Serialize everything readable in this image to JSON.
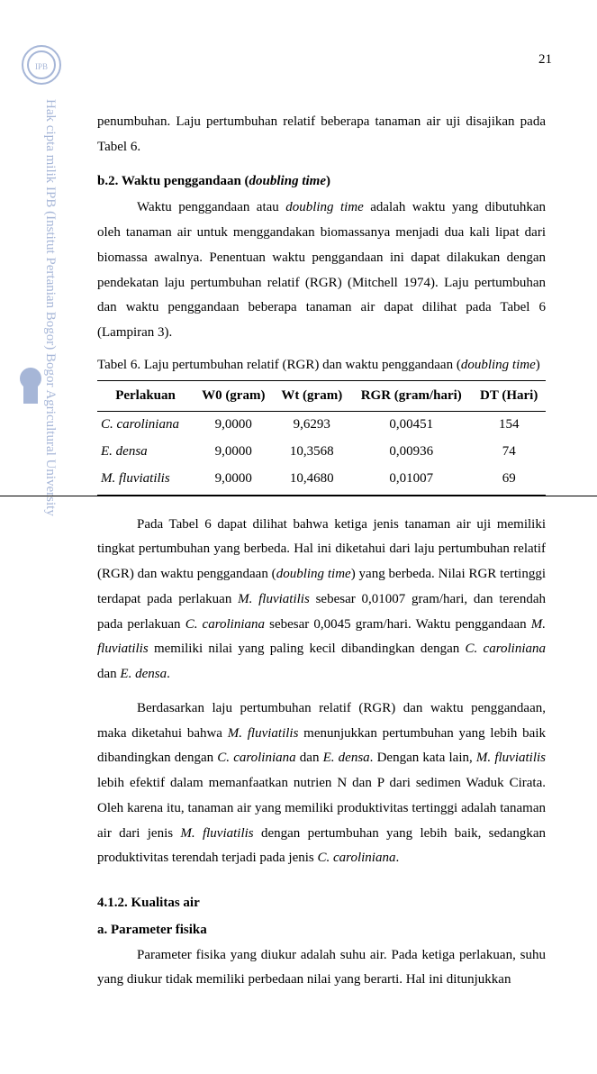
{
  "page_number": "21",
  "paragraphs": {
    "intro_cont": "penumbuhan.   Laju  pertumbuhan  relatif  beberapa  tanaman  air  uji  disajikan  pada Tabel 6.",
    "b2_heading_prefix": "b.2.   Waktu penggandaan (",
    "b2_heading_italic": "doubling time",
    "b2_heading_suffix": ")",
    "b2_body": "Waktu penggandaan atau doubling time adalah waktu yang dibutuhkan oleh tanaman air untuk menggandakan biomassanya menjadi dua kali lipat dari biomassa awalnya.  Penentuan waktu penggandaan ini dapat dilakukan dengan pendekatan laju pertumbuhan relatif (RGR) (Mitchell 1974).  Laju pertumbuhan dan waktu penggandaan beberapa tanaman air dapat dilihat pada Tabel 6 (Lampiran 3).",
    "table_caption_prefix": "Tabel  6.  Laju pertumbuhan relatif (RGR) dan waktu penggandaan (",
    "table_caption_italic": "doubling time",
    "table_caption_suffix": ")",
    "after_table_p1": "Pada Tabel 6 dapat dilihat bahwa ketiga jenis tanaman air uji memiliki tingkat pertumbuhan yang berbeda.  Hal ini diketahui dari laju pertumbuhan relatif (RGR) dan waktu penggandaan (doubling time) yang berbeda.  Nilai RGR tertinggi terdapat pada perlakuan M. fluviatilis sebesar 0,01007 gram/hari, dan terendah pada perlakuan C. caroliniana sebesar 0,0045 gram/hari.  Waktu penggandaan M. fluviatilis memiliki nilai yang paling kecil dibandingkan dengan C. caroliniana dan E. densa.",
    "after_table_p2": "Berdasarkan laju pertumbuhan relatif (RGR) dan waktu penggandaan, maka diketahui bahwa M. fluviatilis menunjukkan pertumbuhan yang lebih baik dibandingkan dengan C. caroliniana dan E. densa.  Dengan kata lain, M. fluviatilis lebih efektif dalam memanfaatkan nutrien N dan P dari sedimen Waduk Cirata. Oleh karena itu, tanaman air yang memiliki produktivitas tertinggi adalah tanaman air dari jenis M. fluviatilis dengan pertumbuhan yang lebih baik, sedangkan produktivitas terendah terjadi pada jenis C. caroliniana.",
    "section_412": "4.1.2.  Kualitas air",
    "section_a": "a.      Parameter fisika",
    "fisika_body": "Parameter fisika yang diukur adalah suhu air. Pada ketiga perlakuan, suhu yang diukur tidak memiliki perbedaan nilai yang berarti.  Hal ini ditunjukkan"
  },
  "table": {
    "columns": [
      "Perlakuan",
      "W0 (gram)",
      "Wt (gram)",
      "RGR (gram/hari)",
      "DT (Hari)"
    ],
    "col_align": [
      "left",
      "center",
      "center",
      "center",
      "center"
    ],
    "rows": [
      {
        "sp": "C. caroliniana",
        "w0": "9,0000",
        "wt": "9,6293",
        "rgr": "0,00451",
        "dt": "154"
      },
      {
        "sp": "E. densa",
        "w0": "9,0000",
        "wt": "10,3568",
        "rgr": "0,00936",
        "dt": "74"
      },
      {
        "sp": "M. fluviatilis",
        "w0": "9,0000",
        "wt": "10,4680",
        "rgr": "0,01007",
        "dt": "69"
      }
    ]
  },
  "watermark": {
    "circle_stroke": "#3b5ea8",
    "text_color": "#3b5ea8",
    "vertical_text": "Hak cipta milik IPB (Institut Pertanian Bogor)                Bogor Agricultural University"
  }
}
